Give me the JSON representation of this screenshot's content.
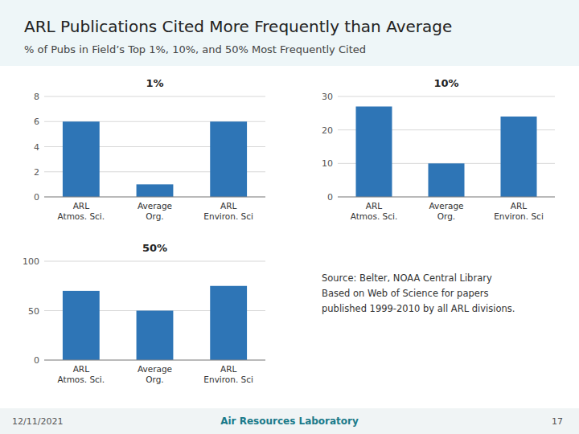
{
  "title": "ARL Publications Cited More Frequently than Average",
  "subtitle": "% of Pubs in Field’s Top 1%, 10%, and 50% Most Frequently Cited",
  "annotations": [
    "Source: Belter, NOAA Central Library\nBased on Web of Science for papers\npublished 1999-2010 by all ARL divisions.",
    "12/11/2021",
    "Air Resources Laboratory",
    "17"
  ],
  "chart_data": [
    {
      "type": "bar",
      "title": "1%",
      "categories": [
        "ARL\nAtmos. Sci.",
        "Average\nOrg.",
        "ARL\nEnviron. Sci"
      ],
      "values": [
        6,
        1,
        6
      ],
      "color": "#2E75B6",
      "ylim": [
        0,
        8
      ],
      "yticks": [
        0,
        2,
        4,
        6,
        8
      ],
      "grid": true
    },
    {
      "type": "bar",
      "title": "10%",
      "categories": [
        "ARL\nAtmos. Sci.",
        "Average\nOrg.",
        "ARL\nEnviron. Sci"
      ],
      "values": [
        27,
        10,
        24
      ],
      "color": "#2E75B6",
      "ylim": [
        0,
        30
      ],
      "yticks": [
        0,
        10,
        20,
        30
      ],
      "grid": true
    },
    {
      "type": "bar",
      "title": "50%",
      "categories": [
        "ARL\nAtmos. Sci.",
        "Average\nOrg.",
        "ARL\nEnviron. Sci"
      ],
      "values": [
        70,
        50,
        75
      ],
      "color": "#2E75B6",
      "ylim": [
        0,
        100
      ],
      "yticks": [
        0,
        50,
        100
      ],
      "grid": true
    }
  ]
}
